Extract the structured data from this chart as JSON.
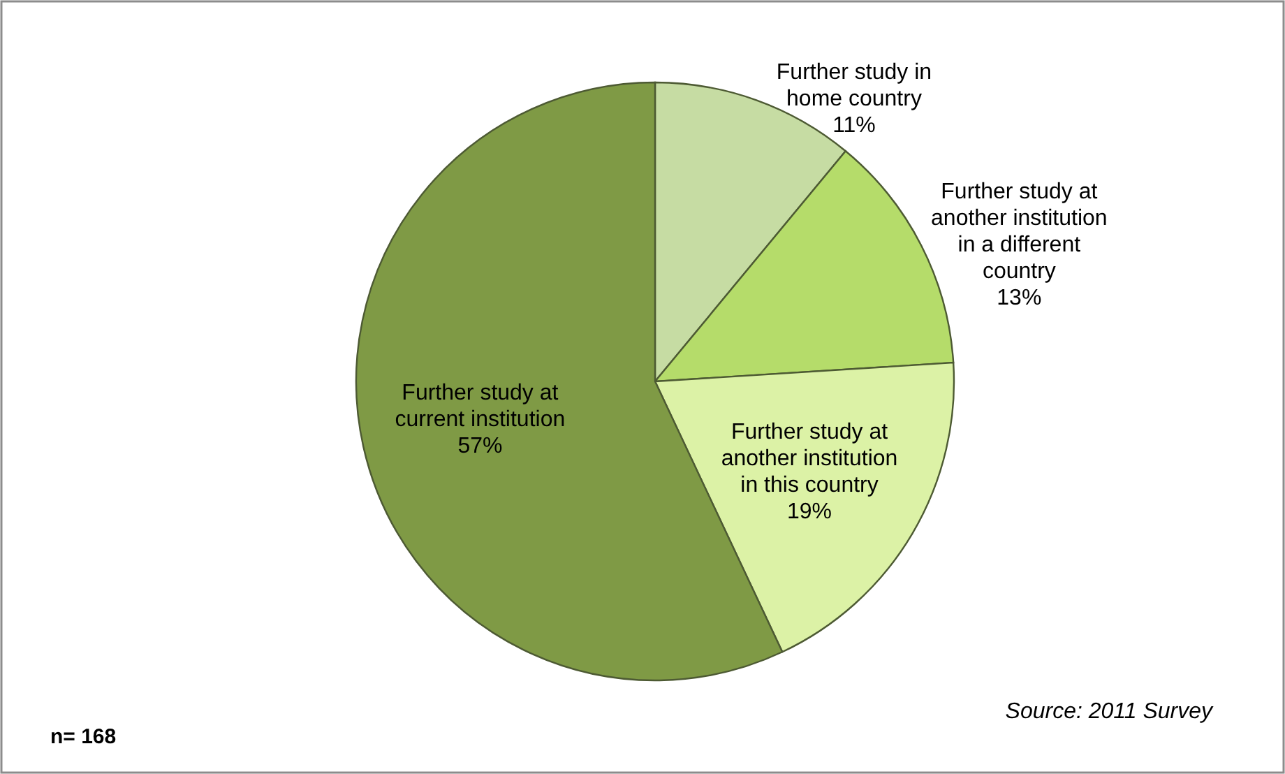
{
  "chart_data": {
    "type": "pie",
    "categories": [
      "Further study in home country",
      "Further study at another institution in a different country",
      "Further study at another institution in this country",
      "Further study at current institution"
    ],
    "values": [
      11,
      13,
      19,
      57
    ],
    "colors": [
      "#c6dca3",
      "#b5dc6a",
      "#dcf2a6",
      "#7f9a45"
    ],
    "value_labels": [
      "11%",
      "13%",
      "19%",
      "57%"
    ],
    "annotations": [
      "Source: 2011 Survey",
      "n= 168"
    ]
  }
}
